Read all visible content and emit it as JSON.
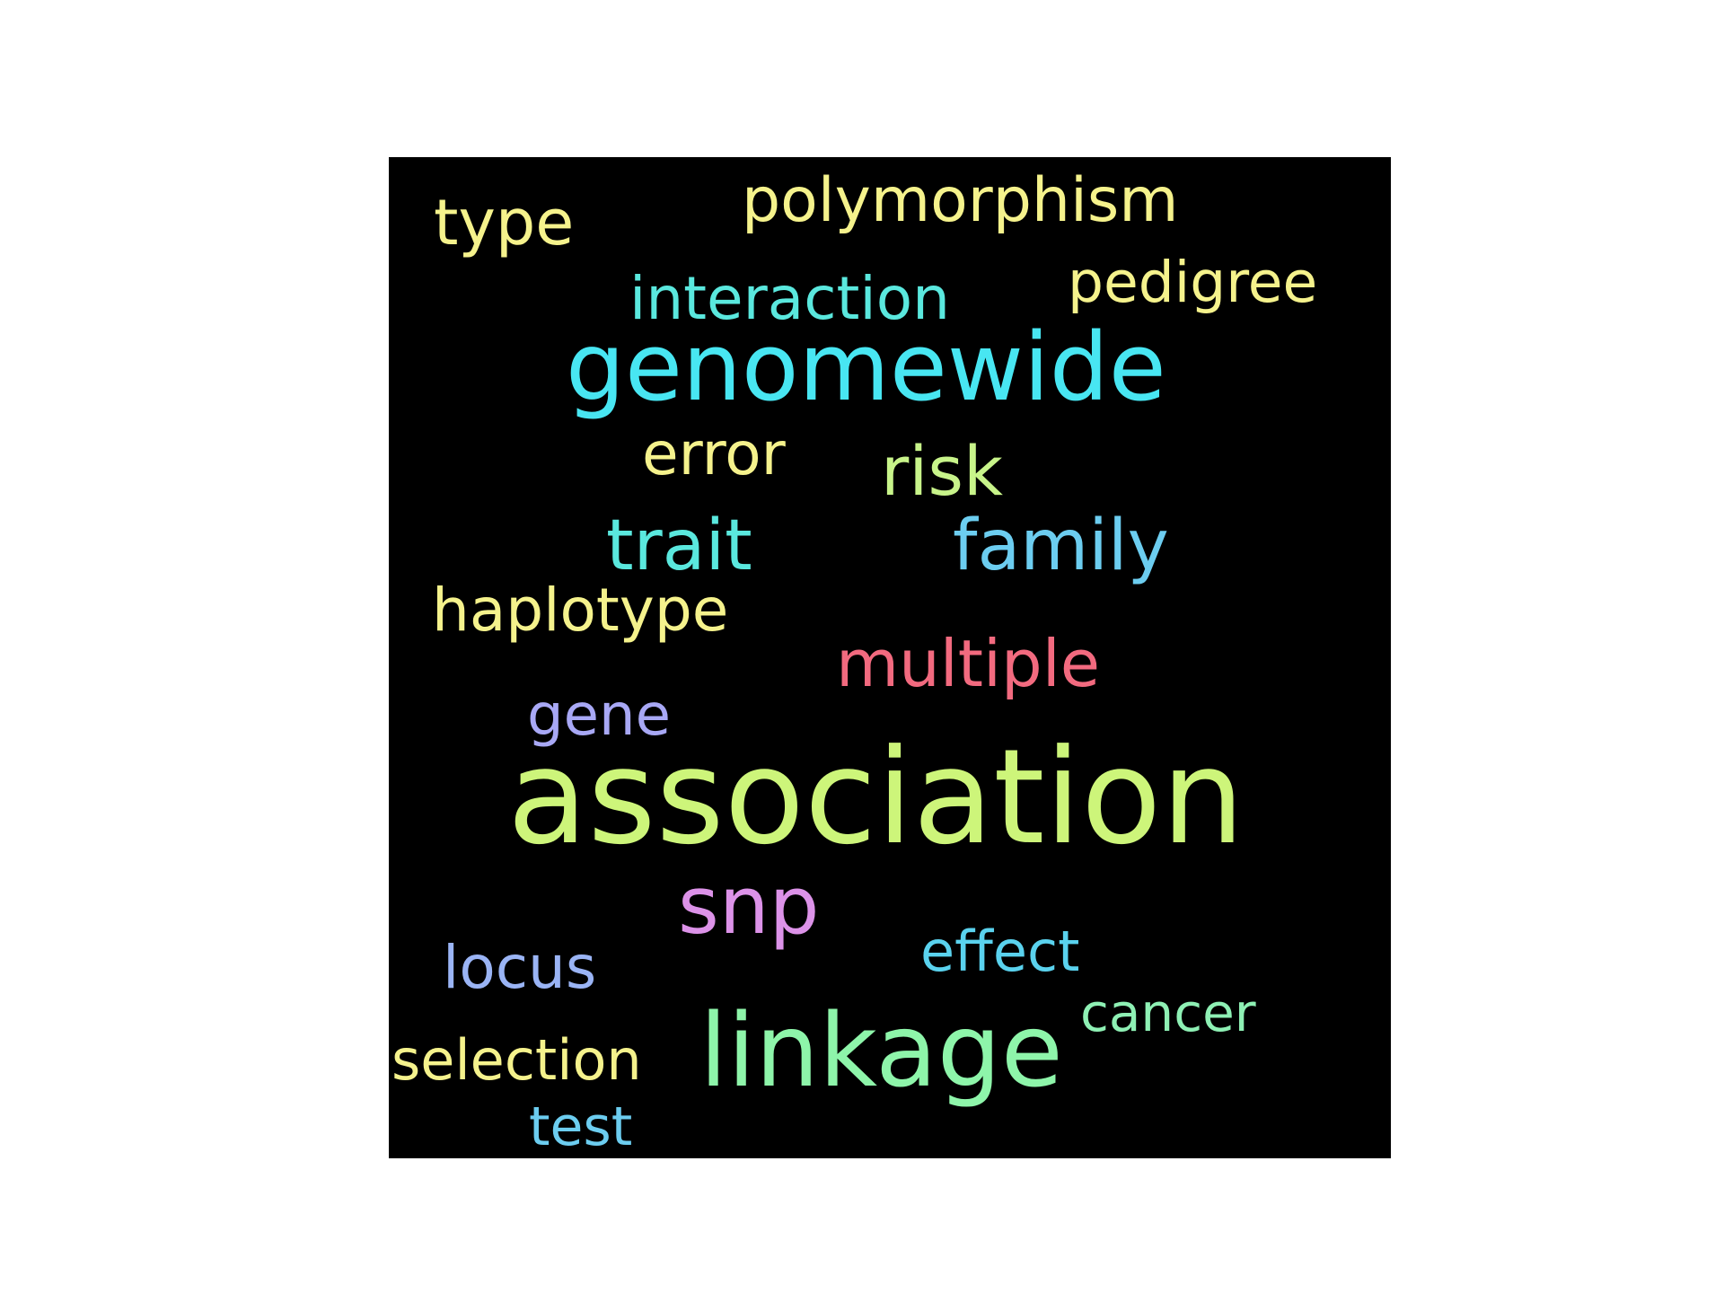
{
  "words": [
    {
      "id": "polymorphism",
      "text": "polymorphism",
      "color": "#f5f28c"
    },
    {
      "id": "type",
      "text": "type",
      "color": "#f5f28c"
    },
    {
      "id": "interaction",
      "text": "interaction",
      "color": "#5ae8de"
    },
    {
      "id": "pedigree",
      "text": "pedigree",
      "color": "#f5f28c"
    },
    {
      "id": "genomewide",
      "text": "genomewide",
      "color": "#48e6f2"
    },
    {
      "id": "error",
      "text": "error",
      "color": "#f5f28c"
    },
    {
      "id": "risk",
      "text": "risk",
      "color": "#c8f48a"
    },
    {
      "id": "trait",
      "text": "trait",
      "color": "#5ae8de"
    },
    {
      "id": "family",
      "text": "family",
      "color": "#6ccdf0"
    },
    {
      "id": "haplotype",
      "text": "haplotype",
      "color": "#f5f28c"
    },
    {
      "id": "multiple",
      "text": "multiple",
      "color": "#f26a7f"
    },
    {
      "id": "gene",
      "text": "gene",
      "color": "#a8a8f5"
    },
    {
      "id": "association",
      "text": "association",
      "color": "#cdf57a"
    },
    {
      "id": "snp",
      "text": "snp",
      "color": "#dc92e8"
    },
    {
      "id": "effect",
      "text": "effect",
      "color": "#5ad2ee"
    },
    {
      "id": "locus",
      "text": "locus",
      "color": "#9ab4f5"
    },
    {
      "id": "cancer",
      "text": "cancer",
      "color": "#8ef0b4"
    },
    {
      "id": "selection",
      "text": "selection",
      "color": "#f5f28c"
    },
    {
      "id": "linkage",
      "text": "linkage",
      "color": "#8ef5aa"
    },
    {
      "id": "test",
      "text": "test",
      "color": "#6ccdf0"
    }
  ]
}
